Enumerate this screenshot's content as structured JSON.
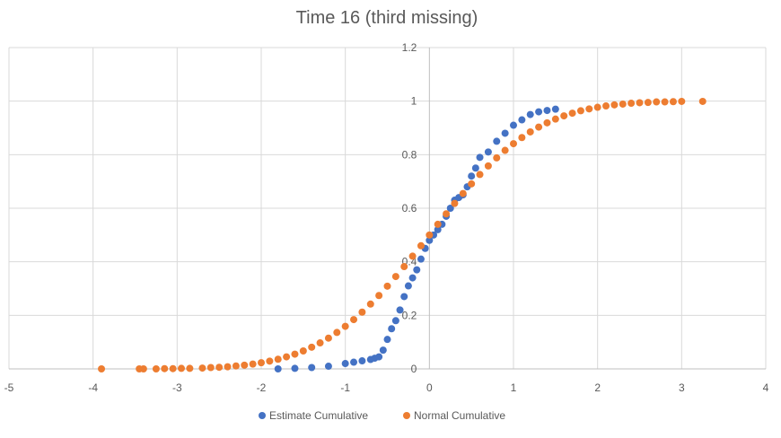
{
  "chart_data": {
    "type": "scatter",
    "title": "Time 16 (third missing)",
    "xlabel": "",
    "ylabel": "",
    "xlim": [
      -5,
      4
    ],
    "ylim": [
      0,
      1.2
    ],
    "x_ticks": [
      -5,
      -4,
      -3,
      -2,
      -1,
      0,
      1,
      2,
      3,
      4
    ],
    "y_ticks": [
      0,
      0.2,
      0.4,
      0.6,
      0.8,
      1,
      1.2
    ],
    "x_tick_labels": [
      "-5",
      "-4",
      "-3",
      "-2",
      "-1",
      "0",
      "1",
      "2",
      "3",
      "4"
    ],
    "y_tick_labels": [
      "0",
      "0.2",
      "0.4",
      "0.6",
      "0.8",
      "1",
      "1.2"
    ],
    "grid": true,
    "legend_position": "bottom",
    "series": [
      {
        "name": "Estimate Cumulative",
        "color": "#4472C4",
        "points": [
          [
            -1.8,
            0.0
          ],
          [
            -1.6,
            0.002
          ],
          [
            -1.4,
            0.005
          ],
          [
            -1.2,
            0.01
          ],
          [
            -1.0,
            0.02
          ],
          [
            -0.9,
            0.025
          ],
          [
            -0.8,
            0.03
          ],
          [
            -0.7,
            0.035
          ],
          [
            -0.65,
            0.04
          ],
          [
            -0.6,
            0.045
          ],
          [
            -0.55,
            0.07
          ],
          [
            -0.5,
            0.11
          ],
          [
            -0.45,
            0.15
          ],
          [
            -0.4,
            0.18
          ],
          [
            -0.35,
            0.22
          ],
          [
            -0.3,
            0.27
          ],
          [
            -0.25,
            0.31
          ],
          [
            -0.2,
            0.34
          ],
          [
            -0.15,
            0.37
          ],
          [
            -0.1,
            0.41
          ],
          [
            -0.05,
            0.45
          ],
          [
            0.0,
            0.48
          ],
          [
            0.05,
            0.5
          ],
          [
            0.1,
            0.52
          ],
          [
            0.15,
            0.54
          ],
          [
            0.2,
            0.57
          ],
          [
            0.25,
            0.6
          ],
          [
            0.3,
            0.63
          ],
          [
            0.35,
            0.64
          ],
          [
            0.4,
            0.65
          ],
          [
            0.45,
            0.68
          ],
          [
            0.5,
            0.72
          ],
          [
            0.55,
            0.75
          ],
          [
            0.6,
            0.79
          ],
          [
            0.7,
            0.81
          ],
          [
            0.8,
            0.85
          ],
          [
            0.9,
            0.88
          ],
          [
            1.0,
            0.91
          ],
          [
            1.1,
            0.93
          ],
          [
            1.2,
            0.95
          ],
          [
            1.3,
            0.96
          ],
          [
            1.4,
            0.965
          ],
          [
            1.5,
            0.97
          ]
        ]
      },
      {
        "name": "Normal Cumulative",
        "color": "#ED7D31",
        "points": [
          [
            -3.9,
            0.0
          ],
          [
            -3.45,
            0.0
          ],
          [
            -3.4,
            0.0
          ],
          [
            -3.25,
            0.0
          ],
          [
            -3.15,
            0.001
          ],
          [
            -3.05,
            0.001
          ],
          [
            -2.95,
            0.002
          ],
          [
            -2.85,
            0.002
          ],
          [
            -2.7,
            0.003
          ],
          [
            -2.6,
            0.005
          ],
          [
            -2.5,
            0.006
          ],
          [
            -2.4,
            0.008
          ],
          [
            -2.3,
            0.011
          ],
          [
            -2.2,
            0.014
          ],
          [
            -2.1,
            0.018
          ],
          [
            -2.0,
            0.023
          ],
          [
            -1.9,
            0.029
          ],
          [
            -1.8,
            0.036
          ],
          [
            -1.7,
            0.045
          ],
          [
            -1.6,
            0.055
          ],
          [
            -1.5,
            0.067
          ],
          [
            -1.4,
            0.081
          ],
          [
            -1.3,
            0.097
          ],
          [
            -1.2,
            0.115
          ],
          [
            -1.1,
            0.136
          ],
          [
            -1.0,
            0.159
          ],
          [
            -0.9,
            0.184
          ],
          [
            -0.8,
            0.212
          ],
          [
            -0.7,
            0.242
          ],
          [
            -0.6,
            0.274
          ],
          [
            -0.5,
            0.309
          ],
          [
            -0.4,
            0.345
          ],
          [
            -0.3,
            0.382
          ],
          [
            -0.2,
            0.421
          ],
          [
            -0.1,
            0.46
          ],
          [
            0.0,
            0.5
          ],
          [
            0.1,
            0.54
          ],
          [
            0.2,
            0.579
          ],
          [
            0.3,
            0.618
          ],
          [
            0.4,
            0.655
          ],
          [
            0.5,
            0.691
          ],
          [
            0.6,
            0.726
          ],
          [
            0.7,
            0.758
          ],
          [
            0.8,
            0.788
          ],
          [
            0.9,
            0.816
          ],
          [
            1.0,
            0.841
          ],
          [
            1.1,
            0.864
          ],
          [
            1.2,
            0.885
          ],
          [
            1.3,
            0.903
          ],
          [
            1.4,
            0.919
          ],
          [
            1.5,
            0.933
          ],
          [
            1.6,
            0.945
          ],
          [
            1.7,
            0.955
          ],
          [
            1.8,
            0.964
          ],
          [
            1.9,
            0.971
          ],
          [
            2.0,
            0.977
          ],
          [
            2.1,
            0.982
          ],
          [
            2.2,
            0.986
          ],
          [
            2.3,
            0.989
          ],
          [
            2.4,
            0.992
          ],
          [
            2.5,
            0.994
          ],
          [
            2.6,
            0.995
          ],
          [
            2.7,
            0.997
          ],
          [
            2.8,
            0.997
          ],
          [
            2.9,
            0.998
          ],
          [
            3.0,
            0.999
          ],
          [
            3.25,
            0.999
          ]
        ]
      }
    ]
  }
}
